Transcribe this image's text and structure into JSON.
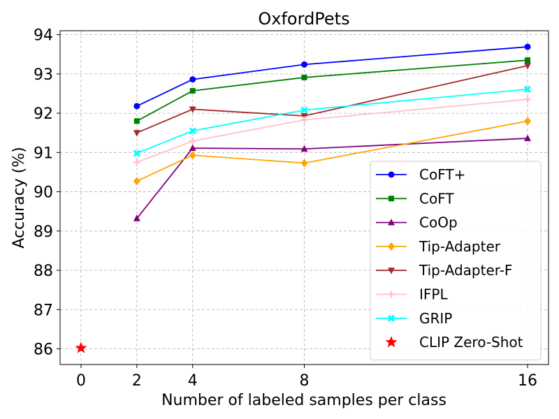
{
  "chart_data": {
    "type": "line",
    "title": "OxfordPets",
    "xlabel": "Number of labeled samples per class",
    "ylabel": "Accuracy (%)",
    "x_ticks": [
      0,
      2,
      4,
      8,
      16
    ],
    "y_ticks": [
      86,
      87,
      88,
      89,
      90,
      91,
      92,
      93,
      94
    ],
    "xlim": [
      -0.75,
      16.75
    ],
    "ylim": [
      85.6,
      94.1
    ],
    "grid": true,
    "legend_position": "lower-right",
    "series": [
      {
        "name": "CoFT+",
        "color": "#0000ff",
        "marker": "circle",
        "x": [
          2,
          4,
          8,
          16
        ],
        "values": [
          92.18,
          92.86,
          93.24,
          93.69
        ]
      },
      {
        "name": "CoFT",
        "color": "#008000",
        "marker": "square",
        "x": [
          2,
          4,
          8,
          16
        ],
        "values": [
          91.8,
          92.57,
          92.91,
          93.35
        ]
      },
      {
        "name": "CoOp",
        "color": "#800080",
        "marker": "triangle-up",
        "x": [
          2,
          4,
          8,
          16
        ],
        "values": [
          89.32,
          91.11,
          91.09,
          91.36
        ]
      },
      {
        "name": "Tip-Adapter",
        "color": "#ffa500",
        "marker": "diamond",
        "x": [
          2,
          4,
          8,
          16
        ],
        "values": [
          90.27,
          90.93,
          90.73,
          91.8
        ]
      },
      {
        "name": "Tip-Adapter-F",
        "color": "#a52a2a",
        "marker": "triangle-down",
        "x": [
          2,
          4,
          8,
          16
        ],
        "values": [
          91.5,
          92.1,
          91.93,
          93.21
        ]
      },
      {
        "name": "IFPL",
        "color": "#ffc0cb",
        "marker": "plus",
        "x": [
          2,
          4,
          8,
          16
        ],
        "values": [
          90.75,
          91.29,
          91.83,
          92.35
        ]
      },
      {
        "name": "GRIP",
        "color": "#00ffff",
        "marker": "x",
        "x": [
          2,
          4,
          8,
          16
        ],
        "values": [
          90.98,
          91.55,
          92.08,
          92.61
        ]
      },
      {
        "name": "CLIP Zero-Shot",
        "color": "#ff0000",
        "marker": "star",
        "x": [
          0
        ],
        "values": [
          86.02
        ],
        "no_line": true
      }
    ]
  }
}
